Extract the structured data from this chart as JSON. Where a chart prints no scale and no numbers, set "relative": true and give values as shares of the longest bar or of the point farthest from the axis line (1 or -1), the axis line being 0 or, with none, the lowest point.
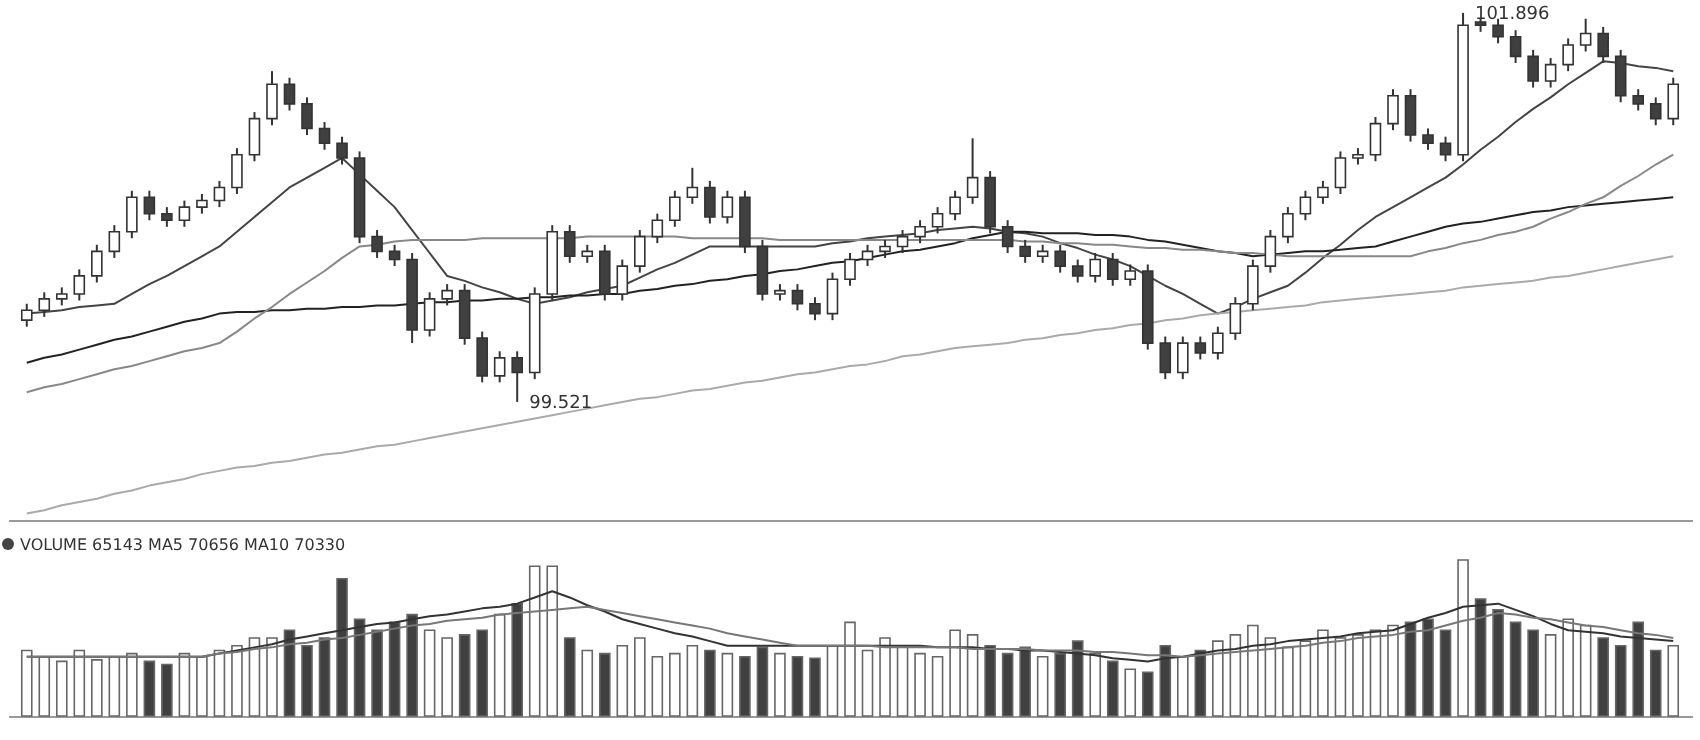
{
  "chart_data": [
    {
      "type": "candlestick",
      "tick_labels": false,
      "ylim": [
        98.8,
        101.95
      ],
      "annotations": [
        "101.896",
        "99.521"
      ],
      "categories": [
        null,
        null,
        null,
        null,
        null,
        null,
        null,
        null,
        null,
        null,
        null,
        null,
        null,
        null,
        null,
        null,
        null,
        null,
        null,
        null,
        null,
        null,
        null,
        null,
        null,
        null,
        null,
        null,
        null,
        null,
        null,
        null,
        null,
        null,
        null,
        null,
        null,
        null,
        null,
        null,
        null,
        null,
        null,
        null,
        null,
        null,
        null,
        null,
        null,
        null,
        null,
        null,
        null,
        null,
        null,
        null,
        null,
        null,
        null,
        null,
        null,
        null,
        null,
        null,
        null,
        null,
        null,
        null,
        null,
        null,
        null,
        null,
        null,
        null,
        null,
        null,
        null,
        null,
        null,
        null,
        null,
        null,
        null,
        null,
        null,
        null,
        null,
        null,
        null,
        null,
        null,
        null,
        null,
        null,
        null
      ],
      "ohlc": [
        [
          100.02,
          100.12,
          99.98,
          100.08
        ],
        [
          100.08,
          100.19,
          100.04,
          100.15
        ],
        [
          100.15,
          100.22,
          100.11,
          100.18
        ],
        [
          100.18,
          100.33,
          100.14,
          100.29
        ],
        [
          100.29,
          100.48,
          100.25,
          100.44
        ],
        [
          100.44,
          100.6,
          100.4,
          100.56
        ],
        [
          100.56,
          100.81,
          100.52,
          100.77
        ],
        [
          100.77,
          100.81,
          100.63,
          100.67
        ],
        [
          100.67,
          100.71,
          100.59,
          100.63
        ],
        [
          100.63,
          100.75,
          100.59,
          100.71
        ],
        [
          100.71,
          100.79,
          100.67,
          100.75
        ],
        [
          100.75,
          100.87,
          100.71,
          100.83
        ],
        [
          100.83,
          101.07,
          100.79,
          101.03
        ],
        [
          101.03,
          101.29,
          100.99,
          101.25
        ],
        [
          101.25,
          101.54,
          101.21,
          101.46
        ],
        [
          101.46,
          101.5,
          101.3,
          101.34
        ],
        [
          101.34,
          101.38,
          101.15,
          101.19
        ],
        [
          101.19,
          101.23,
          101.06,
          101.1
        ],
        [
          101.1,
          101.14,
          100.97,
          101.01
        ],
        [
          101.01,
          101.05,
          100.49,
          100.53
        ],
        [
          100.53,
          100.57,
          100.4,
          100.44
        ],
        [
          100.44,
          100.48,
          100.35,
          100.39
        ],
        [
          100.39,
          100.43,
          99.88,
          99.96
        ],
        [
          99.96,
          100.19,
          99.92,
          100.15
        ],
        [
          100.15,
          100.24,
          100.11,
          100.2
        ],
        [
          100.2,
          100.24,
          99.87,
          99.91
        ],
        [
          99.91,
          99.95,
          99.64,
          99.68
        ],
        [
          99.68,
          99.83,
          99.64,
          99.79
        ],
        [
          99.79,
          99.83,
          99.521,
          99.7
        ],
        [
          99.7,
          100.22,
          99.66,
          100.18
        ],
        [
          100.18,
          100.6,
          100.14,
          100.56
        ],
        [
          100.56,
          100.6,
          100.37,
          100.41
        ],
        [
          100.41,
          100.48,
          100.37,
          100.44
        ],
        [
          100.44,
          100.48,
          100.14,
          100.18
        ],
        [
          100.18,
          100.39,
          100.14,
          100.35
        ],
        [
          100.35,
          100.57,
          100.31,
          100.53
        ],
        [
          100.53,
          100.67,
          100.49,
          100.63
        ],
        [
          100.63,
          100.81,
          100.59,
          100.77
        ],
        [
          100.77,
          100.95,
          100.73,
          100.83
        ],
        [
          100.83,
          100.87,
          100.61,
          100.65
        ],
        [
          100.65,
          100.81,
          100.61,
          100.77
        ],
        [
          100.77,
          100.81,
          100.43,
          100.47
        ],
        [
          100.47,
          100.51,
          100.14,
          100.18
        ],
        [
          100.18,
          100.24,
          100.14,
          100.2
        ],
        [
          100.2,
          100.24,
          100.08,
          100.12
        ],
        [
          100.12,
          100.16,
          100.02,
          100.06
        ],
        [
          100.06,
          100.31,
          100.02,
          100.27
        ],
        [
          100.27,
          100.43,
          100.23,
          100.39
        ],
        [
          100.39,
          100.48,
          100.35,
          100.44
        ],
        [
          100.44,
          100.51,
          100.4,
          100.47
        ],
        [
          100.47,
          100.57,
          100.43,
          100.53
        ],
        [
          100.53,
          100.63,
          100.49,
          100.59
        ],
        [
          100.59,
          100.71,
          100.55,
          100.67
        ],
        [
          100.67,
          100.81,
          100.63,
          100.77
        ],
        [
          100.77,
          101.13,
          100.73,
          100.89
        ],
        [
          100.89,
          100.93,
          100.55,
          100.59
        ],
        [
          100.59,
          100.63,
          100.43,
          100.47
        ],
        [
          100.47,
          100.51,
          100.37,
          100.41
        ],
        [
          100.41,
          100.48,
          100.37,
          100.44
        ],
        [
          100.44,
          100.48,
          100.31,
          100.35
        ],
        [
          100.35,
          100.39,
          100.25,
          100.29
        ],
        [
          100.29,
          100.43,
          100.25,
          100.39
        ],
        [
          100.39,
          100.43,
          100.23,
          100.27
        ],
        [
          100.27,
          100.36,
          100.23,
          100.32
        ],
        [
          100.32,
          100.36,
          99.84,
          99.88
        ],
        [
          99.88,
          99.92,
          99.66,
          99.7
        ],
        [
          99.7,
          99.92,
          99.66,
          99.88
        ],
        [
          99.88,
          99.92,
          99.78,
          99.82
        ],
        [
          99.82,
          99.98,
          99.78,
          99.94
        ],
        [
          99.94,
          100.16,
          99.9,
          100.12
        ],
        [
          100.12,
          100.39,
          100.08,
          100.35
        ],
        [
          100.35,
          100.57,
          100.31,
          100.53
        ],
        [
          100.53,
          100.71,
          100.49,
          100.67
        ],
        [
          100.67,
          100.81,
          100.63,
          100.77
        ],
        [
          100.77,
          100.87,
          100.73,
          100.83
        ],
        [
          100.83,
          101.05,
          100.79,
          101.01
        ],
        [
          101.01,
          101.07,
          100.97,
          101.03
        ],
        [
          101.03,
          101.26,
          100.99,
          101.22
        ],
        [
          101.22,
          101.43,
          101.18,
          101.39
        ],
        [
          101.39,
          101.43,
          101.11,
          101.15
        ],
        [
          101.15,
          101.19,
          101.06,
          101.1
        ],
        [
          101.1,
          101.14,
          100.99,
          101.03
        ],
        [
          101.03,
          101.896,
          100.99,
          101.82
        ],
        [
          101.84,
          101.86,
          101.78,
          101.82
        ],
        [
          101.82,
          101.86,
          101.71,
          101.75
        ],
        [
          101.75,
          101.79,
          101.59,
          101.63
        ],
        [
          101.63,
          101.67,
          101.44,
          101.48
        ],
        [
          101.48,
          101.62,
          101.44,
          101.58
        ],
        [
          101.58,
          101.74,
          101.54,
          101.7
        ],
        [
          101.7,
          101.86,
          101.66,
          101.77
        ],
        [
          101.77,
          101.81,
          101.59,
          101.63
        ],
        [
          101.63,
          101.67,
          101.35,
          101.39
        ],
        [
          101.39,
          101.43,
          101.3,
          101.34
        ],
        [
          101.34,
          101.38,
          101.21,
          101.25
        ],
        [
          101.25,
          101.5,
          101.21,
          101.46
        ]
      ],
      "colors": [
        "#ffffff",
        "#ffffff",
        "#ffffff",
        "#ffffff",
        "#ffffff",
        "#ffffff",
        "#ffffff",
        "#404040",
        "#404040",
        "#ffffff",
        "#ffffff",
        "#ffffff",
        "#ffffff",
        "#ffffff",
        "#ffffff",
        "#404040",
        "#404040",
        "#404040",
        "#404040",
        "#404040",
        "#404040",
        "#404040",
        "#404040",
        "#ffffff",
        "#ffffff",
        "#404040",
        "#404040",
        "#ffffff",
        "#404040",
        "#ffffff",
        "#ffffff",
        "#404040",
        "#ffffff",
        "#404040",
        "#ffffff",
        "#ffffff",
        "#ffffff",
        "#ffffff",
        "#ffffff",
        "#404040",
        "#ffffff",
        "#404040",
        "#404040",
        "#ffffff",
        "#404040",
        "#404040",
        "#ffffff",
        "#ffffff",
        "#ffffff",
        "#ffffff",
        "#ffffff",
        "#ffffff",
        "#ffffff",
        "#ffffff",
        "#ffffff",
        "#404040",
        "#404040",
        "#404040",
        "#ffffff",
        "#404040",
        "#404040",
        "#ffffff",
        "#404040",
        "#ffffff",
        "#404040",
        "#404040",
        "#ffffff",
        "#404040",
        "#ffffff",
        "#ffffff",
        "#ffffff",
        "#ffffff",
        "#ffffff",
        "#ffffff",
        "#ffffff",
        "#ffffff",
        "#ffffff",
        "#ffffff",
        "#ffffff",
        "#404040",
        "#404040",
        "#404040",
        "#ffffff",
        "#404040",
        "#404040",
        "#404040",
        "#404040",
        "#ffffff",
        "#ffffff",
        "#ffffff",
        "#404040",
        "#404040",
        "#404040",
        "#404040",
        "#ffffff"
      ],
      "series": [
        {
          "type": "line",
          "color": "#444444",
          "values": [
            100.06,
            100.07,
            100.08,
            100.1,
            100.11,
            100.12,
            100.18,
            100.24,
            100.29,
            100.35,
            100.41,
            100.47,
            100.56,
            100.65,
            100.74,
            100.83,
            100.89,
            100.95,
            101.01,
            100.91,
            100.81,
            100.71,
            100.57,
            100.43,
            100.29,
            100.26,
            100.22,
            100.19,
            100.15,
            100.12,
            100.14,
            100.16,
            100.19,
            100.21,
            100.23,
            100.28,
            100.33,
            100.37,
            100.42,
            100.47,
            100.47,
            100.47,
            100.47,
            100.47,
            100.47,
            100.47,
            100.49,
            100.5,
            100.52,
            100.53,
            100.54,
            100.55,
            100.57,
            100.58,
            100.59,
            100.58,
            100.56,
            100.55,
            100.53,
            100.49,
            100.46,
            100.42,
            100.39,
            100.35,
            100.29,
            100.23,
            100.18,
            100.12,
            100.06,
            100.1,
            100.15,
            100.19,
            100.23,
            100.31,
            100.4,
            100.48,
            100.57,
            100.65,
            100.71,
            100.77,
            100.83,
            100.89,
            100.97,
            101.06,
            101.14,
            101.23,
            101.31,
            101.38,
            101.46,
            101.53,
            101.6,
            101.59,
            101.57,
            101.56,
            101.54
          ]
        },
        {
          "type": "line",
          "color": "#222222",
          "values": [
            99.76,
            99.79,
            99.81,
            99.84,
            99.87,
            99.9,
            99.92,
            99.95,
            99.98,
            100.01,
            100.03,
            100.06,
            100.07,
            100.07,
            100.08,
            100.08,
            100.09,
            100.09,
            100.1,
            100.1,
            100.11,
            100.11,
            100.12,
            100.13,
            100.13,
            100.14,
            100.14,
            100.15,
            100.15,
            100.16,
            100.16,
            100.17,
            100.17,
            100.18,
            100.18,
            100.2,
            100.21,
            100.23,
            100.24,
            100.26,
            100.27,
            100.29,
            100.3,
            100.32,
            100.33,
            100.35,
            100.37,
            100.38,
            100.4,
            100.42,
            100.44,
            100.45,
            100.47,
            100.49,
            100.52,
            100.54,
            100.56,
            100.56,
            100.55,
            100.55,
            100.55,
            100.54,
            100.54,
            100.53,
            100.51,
            100.5,
            100.48,
            100.46,
            100.44,
            100.43,
            100.41,
            100.42,
            100.43,
            100.44,
            100.44,
            100.45,
            100.46,
            100.47,
            100.5,
            100.53,
            100.56,
            100.59,
            100.61,
            100.62,
            100.64,
            100.66,
            100.68,
            100.69,
            100.71,
            100.72,
            100.73,
            100.74,
            100.75,
            100.76,
            100.77
          ]
        },
        {
          "type": "line",
          "color": "#888888",
          "values": [
            99.58,
            99.61,
            99.63,
            99.66,
            99.69,
            99.72,
            99.74,
            99.77,
            99.8,
            99.83,
            99.85,
            99.88,
            99.95,
            100.03,
            100.1,
            100.18,
            100.25,
            100.32,
            100.4,
            100.47,
            100.48,
            100.5,
            100.51,
            100.51,
            100.51,
            100.51,
            100.52,
            100.52,
            100.52,
            100.52,
            100.52,
            100.52,
            100.53,
            100.53,
            100.53,
            100.53,
            100.53,
            100.53,
            100.52,
            100.52,
            100.52,
            100.52,
            100.52,
            100.51,
            100.51,
            100.51,
            100.51,
            100.51,
            100.51,
            100.51,
            100.51,
            100.51,
            100.51,
            100.51,
            100.51,
            100.51,
            100.51,
            100.5,
            100.5,
            100.49,
            100.49,
            100.48,
            100.48,
            100.47,
            100.46,
            100.46,
            100.45,
            100.45,
            100.44,
            100.43,
            100.43,
            100.42,
            100.41,
            100.41,
            100.41,
            100.41,
            100.41,
            100.41,
            100.41,
            100.41,
            100.44,
            100.46,
            100.49,
            100.51,
            100.54,
            100.56,
            100.59,
            100.64,
            100.68,
            100.73,
            100.77,
            100.84,
            100.9,
            100.97,
            101.03
          ]
        },
        {
          "type": "line",
          "color": "#aaaaaa",
          "values": [
            98.84,
            98.86,
            98.89,
            98.91,
            98.93,
            98.96,
            98.98,
            99.01,
            99.03,
            99.05,
            99.08,
            99.1,
            99.12,
            99.13,
            99.15,
            99.16,
            99.18,
            99.2,
            99.21,
            99.23,
            99.25,
            99.26,
            99.28,
            99.3,
            99.32,
            99.34,
            99.36,
            99.38,
            99.4,
            99.42,
            99.44,
            99.46,
            99.48,
            99.5,
            99.52,
            99.54,
            99.55,
            99.57,
            99.59,
            99.6,
            99.62,
            99.64,
            99.65,
            99.67,
            99.69,
            99.7,
            99.72,
            99.74,
            99.75,
            99.77,
            99.8,
            99.81,
            99.83,
            99.85,
            99.86,
            99.87,
            99.88,
            99.9,
            99.91,
            99.93,
            99.94,
            99.96,
            99.97,
            99.99,
            100.0,
            100.02,
            100.03,
            100.05,
            100.06,
            100.07,
            100.08,
            100.09,
            100.1,
            100.11,
            100.13,
            100.14,
            100.15,
            100.16,
            100.17,
            100.18,
            100.19,
            100.2,
            100.22,
            100.23,
            100.24,
            100.25,
            100.26,
            100.28,
            100.29,
            100.31,
            100.33,
            100.35,
            100.37,
            100.39,
            100.41
          ]
        }
      ]
    },
    {
      "type": "bar",
      "title": "VOLUME 65143 MA5 70656 MA10 70330",
      "relative": true,
      "tick_labels": false,
      "categories": [
        null,
        null,
        null,
        null,
        null,
        null,
        null,
        null,
        null,
        null,
        null,
        null,
        null,
        null,
        null,
        null,
        null,
        null,
        null,
        null,
        null,
        null,
        null,
        null,
        null,
        null,
        null,
        null,
        null,
        null,
        null,
        null,
        null,
        null,
        null,
        null,
        null,
        null,
        null,
        null,
        null,
        null,
        null,
        null,
        null,
        null,
        null,
        null,
        null,
        null,
        null,
        null,
        null,
        null,
        null,
        null,
        null,
        null,
        null,
        null,
        null,
        null,
        null,
        null,
        null,
        null,
        null,
        null,
        null,
        null,
        null,
        null,
        null,
        null,
        null,
        null,
        null,
        null,
        null,
        null,
        null,
        null,
        null,
        null,
        null,
        null,
        null,
        null,
        null,
        null,
        null,
        null,
        null,
        null,
        null
      ],
      "values": [
        0.42,
        0.38,
        0.35,
        0.42,
        0.36,
        0.38,
        0.4,
        0.35,
        0.33,
        0.4,
        0.38,
        0.42,
        0.45,
        0.5,
        0.5,
        0.55,
        0.45,
        0.5,
        0.88,
        0.62,
        0.55,
        0.6,
        0.65,
        0.55,
        0.5,
        0.52,
        0.55,
        0.65,
        0.72,
        0.96,
        0.96,
        0.5,
        0.42,
        0.4,
        0.45,
        0.5,
        0.38,
        0.4,
        0.45,
        0.42,
        0.4,
        0.38,
        0.44,
        0.4,
        0.38,
        0.37,
        0.45,
        0.6,
        0.42,
        0.5,
        0.45,
        0.4,
        0.38,
        0.55,
        0.52,
        0.45,
        0.4,
        0.44,
        0.38,
        0.4,
        0.48,
        0.4,
        0.35,
        0.3,
        0.28,
        0.45,
        0.38,
        0.42,
        0.48,
        0.52,
        0.58,
        0.5,
        0.44,
        0.48,
        0.55,
        0.5,
        0.52,
        0.55,
        0.58,
        0.6,
        0.62,
        0.55,
        1.0,
        0.75,
        0.68,
        0.6,
        0.55,
        0.52,
        0.62,
        0.58,
        0.5,
        0.45,
        0.6,
        0.42,
        0.45
      ],
      "colors": [
        "#ffffff",
        "#ffffff",
        "#ffffff",
        "#ffffff",
        "#ffffff",
        "#ffffff",
        "#ffffff",
        "#404040",
        "#404040",
        "#ffffff",
        "#ffffff",
        "#ffffff",
        "#ffffff",
        "#ffffff",
        "#ffffff",
        "#404040",
        "#404040",
        "#404040",
        "#404040",
        "#404040",
        "#404040",
        "#404040",
        "#404040",
        "#ffffff",
        "#ffffff",
        "#404040",
        "#404040",
        "#ffffff",
        "#404040",
        "#ffffff",
        "#ffffff",
        "#404040",
        "#ffffff",
        "#404040",
        "#ffffff",
        "#ffffff",
        "#ffffff",
        "#ffffff",
        "#ffffff",
        "#404040",
        "#ffffff",
        "#404040",
        "#404040",
        "#ffffff",
        "#404040",
        "#404040",
        "#ffffff",
        "#ffffff",
        "#ffffff",
        "#ffffff",
        "#ffffff",
        "#ffffff",
        "#ffffff",
        "#ffffff",
        "#ffffff",
        "#404040",
        "#404040",
        "#404040",
        "#ffffff",
        "#404040",
        "#404040",
        "#ffffff",
        "#404040",
        "#ffffff",
        "#404040",
        "#404040",
        "#ffffff",
        "#404040",
        "#ffffff",
        "#ffffff",
        "#ffffff",
        "#ffffff",
        "#ffffff",
        "#ffffff",
        "#ffffff",
        "#ffffff",
        "#ffffff",
        "#ffffff",
        "#ffffff",
        "#404040",
        "#404040",
        "#404040",
        "#ffffff",
        "#404040",
        "#404040",
        "#404040",
        "#404040",
        "#ffffff",
        "#ffffff",
        "#ffffff",
        "#404040",
        "#404040",
        "#404040",
        "#404040",
        "#ffffff"
      ],
      "series": [
        {
          "type": "line",
          "color": "#333333",
          "values": [
            0.38,
            0.38,
            0.38,
            0.38,
            0.38,
            0.38,
            0.38,
            0.38,
            0.38,
            0.38,
            0.38,
            0.4,
            0.42,
            0.44,
            0.46,
            0.49,
            0.51,
            0.53,
            0.55,
            0.57,
            0.59,
            0.6,
            0.62,
            0.64,
            0.65,
            0.67,
            0.69,
            0.7,
            0.72,
            0.76,
            0.8,
            0.76,
            0.71,
            0.67,
            0.62,
            0.59,
            0.56,
            0.53,
            0.51,
            0.48,
            0.45,
            0.45,
            0.45,
            0.45,
            0.45,
            0.45,
            0.45,
            0.45,
            0.45,
            0.45,
            0.45,
            0.45,
            0.44,
            0.44,
            0.44,
            0.43,
            0.43,
            0.42,
            0.42,
            0.41,
            0.4,
            0.39,
            0.37,
            0.36,
            0.35,
            0.37,
            0.38,
            0.4,
            0.42,
            0.43,
            0.45,
            0.46,
            0.48,
            0.49,
            0.5,
            0.51,
            0.53,
            0.54,
            0.55,
            0.59,
            0.63,
            0.66,
            0.7,
            0.71,
            0.72,
            0.68,
            0.64,
            0.59,
            0.55,
            0.54,
            0.53,
            0.51,
            0.5,
            0.49,
            0.48
          ]
        },
        {
          "type": "line",
          "color": "#777777",
          "values": [
            0.38,
            0.38,
            0.38,
            0.38,
            0.38,
            0.38,
            0.38,
            0.38,
            0.38,
            0.38,
            0.38,
            0.4,
            0.41,
            0.43,
            0.44,
            0.46,
            0.47,
            0.49,
            0.5,
            0.52,
            0.54,
            0.56,
            0.58,
            0.59,
            0.61,
            0.62,
            0.63,
            0.65,
            0.66,
            0.67,
            0.68,
            0.69,
            0.7,
            0.68,
            0.66,
            0.64,
            0.62,
            0.6,
            0.58,
            0.56,
            0.53,
            0.51,
            0.49,
            0.47,
            0.45,
            0.45,
            0.45,
            0.45,
            0.45,
            0.44,
            0.44,
            0.44,
            0.44,
            0.44,
            0.43,
            0.43,
            0.43,
            0.43,
            0.42,
            0.42,
            0.42,
            0.41,
            0.41,
            0.4,
            0.39,
            0.39,
            0.38,
            0.39,
            0.4,
            0.41,
            0.42,
            0.43,
            0.44,
            0.45,
            0.47,
            0.48,
            0.5,
            0.51,
            0.52,
            0.54,
            0.55,
            0.58,
            0.61,
            0.63,
            0.66,
            0.65,
            0.63,
            0.62,
            0.6,
            0.58,
            0.57,
            0.55,
            0.53,
            0.52,
            0.5
          ]
        }
      ]
    }
  ]
}
